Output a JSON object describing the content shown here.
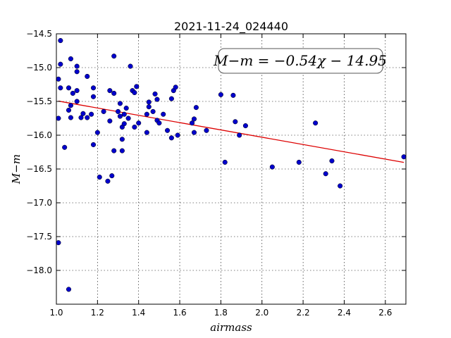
{
  "chart_data": {
    "type": "scatter",
    "title": "2021-11-24_024440",
    "xlabel": "airmass",
    "ylabel": "M−m",
    "xlim": [
      1.0,
      2.7
    ],
    "ylim": [
      -14.5,
      -18.5
    ],
    "y_inverted": true,
    "grid": true,
    "xticks": [
      1.0,
      1.2,
      1.4,
      1.6,
      1.8,
      2.0,
      2.2,
      2.4,
      2.6
    ],
    "xtick_labels": [
      "1.0",
      "1.2",
      "1.4",
      "1.6",
      "1.8",
      "2.0",
      "2.2",
      "2.4",
      "2.6"
    ],
    "yticks": [
      -14.5,
      -15.0,
      -15.5,
      -16.0,
      -16.5,
      -17.0,
      -17.5,
      -18.0
    ],
    "ytick_labels": [
      "−14.5",
      "−15.0",
      "−15.5",
      "−16.0",
      "−16.5",
      "−17.0",
      "−17.5",
      "−18.0"
    ],
    "point_color": "#0000cc",
    "fit_color": "#dd0000",
    "fit": {
      "slope": -0.54,
      "intercept": -14.95,
      "label": "M−m = −0.54χ − 14.95"
    },
    "points": [
      [
        1.01,
        -15.17
      ],
      [
        1.01,
        -15.75
      ],
      [
        1.01,
        -17.59
      ],
      [
        1.02,
        -14.6
      ],
      [
        1.02,
        -14.95
      ],
      [
        1.02,
        -15.3
      ],
      [
        1.04,
        -16.18
      ],
      [
        1.06,
        -15.63
      ],
      [
        1.06,
        -15.3
      ],
      [
        1.07,
        -15.56
      ],
      [
        1.07,
        -15.74
      ],
      [
        1.07,
        -14.87
      ],
      [
        1.08,
        -15.38
      ],
      [
        1.1,
        -15.06
      ],
      [
        1.1,
        -15.34
      ],
      [
        1.1,
        -15.5
      ],
      [
        1.1,
        -14.98
      ],
      [
        1.12,
        -15.74
      ],
      [
        1.13,
        -15.68
      ],
      [
        1.15,
        -15.13
      ],
      [
        1.15,
        -15.74
      ],
      [
        1.17,
        -15.69
      ],
      [
        1.18,
        -15.3
      ],
      [
        1.18,
        -15.43
      ],
      [
        1.18,
        -16.14
      ],
      [
        1.2,
        -15.96
      ],
      [
        1.21,
        -16.62
      ],
      [
        1.23,
        -15.65
      ],
      [
        1.25,
        -16.68
      ],
      [
        1.26,
        -15.34
      ],
      [
        1.26,
        -15.79
      ],
      [
        1.27,
        -16.6
      ],
      [
        1.28,
        -14.83
      ],
      [
        1.28,
        -15.38
      ],
      [
        1.28,
        -16.23
      ],
      [
        1.3,
        -15.65
      ],
      [
        1.31,
        -15.53
      ],
      [
        1.31,
        -15.72
      ],
      [
        1.32,
        -15.88
      ],
      [
        1.32,
        -16.06
      ],
      [
        1.32,
        -16.23
      ],
      [
        1.33,
        -15.69
      ],
      [
        1.33,
        -15.83
      ],
      [
        1.34,
        -15.6
      ],
      [
        1.35,
        -15.75
      ],
      [
        1.36,
        -14.98
      ],
      [
        1.37,
        -15.34
      ],
      [
        1.38,
        -15.37
      ],
      [
        1.38,
        -15.88
      ],
      [
        1.39,
        -15.28
      ],
      [
        1.4,
        -15.82
      ],
      [
        1.44,
        -15.96
      ],
      [
        1.44,
        -15.69
      ],
      [
        1.45,
        -15.51
      ],
      [
        1.45,
        -15.58
      ],
      [
        1.47,
        -15.65
      ],
      [
        1.48,
        -15.39
      ],
      [
        1.49,
        -15.47
      ],
      [
        1.49,
        -15.78
      ],
      [
        1.5,
        -15.82
      ],
      [
        1.52,
        -15.69
      ],
      [
        1.54,
        -15.93
      ],
      [
        1.56,
        -15.46
      ],
      [
        1.56,
        -16.04
      ],
      [
        1.57,
        -15.34
      ],
      [
        1.58,
        -15.29
      ],
      [
        1.59,
        -16.0
      ],
      [
        1.66,
        -15.82
      ],
      [
        1.67,
        -15.76
      ],
      [
        1.67,
        -15.96
      ],
      [
        1.68,
        -15.59
      ],
      [
        1.73,
        -15.93
      ],
      [
        1.8,
        -15.4
      ],
      [
        1.82,
        -16.4
      ],
      [
        1.86,
        -15.41
      ],
      [
        1.87,
        -15.8
      ],
      [
        1.89,
        -16.0
      ],
      [
        1.92,
        -15.86
      ],
      [
        2.05,
        -16.47
      ],
      [
        2.18,
        -16.4
      ],
      [
        2.26,
        -15.82
      ],
      [
        2.31,
        -16.57
      ],
      [
        2.34,
        -16.38
      ],
      [
        2.38,
        -16.75
      ],
      [
        2.69,
        -16.32
      ],
      [
        1.06,
        -18.28
      ]
    ]
  }
}
